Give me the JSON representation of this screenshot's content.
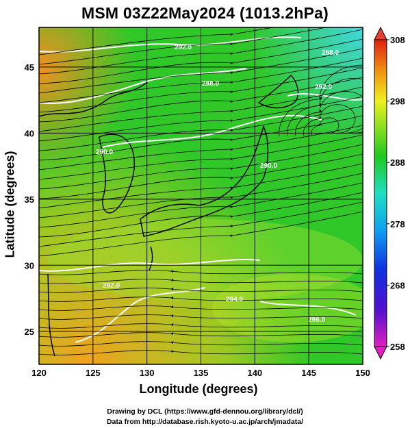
{
  "title": "MSM 03Z22May2024 (1013.2hPa)",
  "x_axis": {
    "label": "Longitude (degrees)",
    "ticks": [
      "120",
      "125",
      "130",
      "135",
      "140",
      "145",
      "150"
    ]
  },
  "y_axis": {
    "label": "Latitude  (degrees)",
    "ticks": [
      "25",
      "30",
      "35",
      "40",
      "45"
    ]
  },
  "colorbar": {
    "ticks": [
      "308",
      "298",
      "288",
      "278",
      "268",
      "258"
    ]
  },
  "credits": {
    "line1": "Drawing by DCL (https://www.gfd-dennou.org/library/dcl/)",
    "line2": "Data from http://database.rish.kyoto-u.ac.jp/arch/jmadata/"
  },
  "contour_labels": [
    "292.0",
    "290.0",
    "288.0",
    "292.0",
    "290.0",
    "288.0",
    "292.0",
    "294.0",
    "296.0"
  ],
  "colors": {
    "warm": "#f0a020",
    "mid": "#22c41c",
    "cool": "#2de0c0",
    "contour": "#ffffff",
    "streamline": "#000000"
  }
}
